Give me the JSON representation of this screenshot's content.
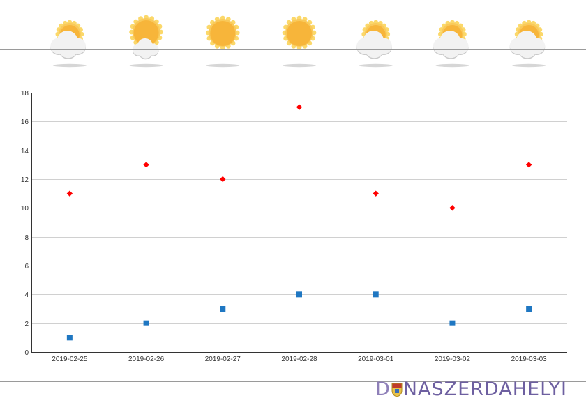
{
  "colors": {
    "series_high": "#ff0000",
    "series_low": "#1f77c2",
    "grid": "#d0d0d0",
    "axis": "#333333",
    "sun_core": "#f7b53a",
    "sun_rays": "#fbd86a",
    "cloud": "#f2f2f2",
    "cloud_shadow": "#c8c8c8"
  },
  "weather_icons": [
    {
      "date": "2019-02-25",
      "icon": "partly-cloudy-icon"
    },
    {
      "date": "2019-02-26",
      "icon": "sun-small-cloud-icon"
    },
    {
      "date": "2019-02-27",
      "icon": "sun-icon"
    },
    {
      "date": "2019-02-28",
      "icon": "sun-icon"
    },
    {
      "date": "2019-03-01",
      "icon": "partly-cloudy-icon"
    },
    {
      "date": "2019-03-02",
      "icon": "partly-cloudy-icon"
    },
    {
      "date": "2019-03-03",
      "icon": "partly-cloudy-icon"
    }
  ],
  "chart_data": {
    "type": "scatter",
    "categories": [
      "2019-02-25",
      "2019-02-26",
      "2019-02-27",
      "2019-02-28",
      "2019-03-01",
      "2019-03-02",
      "2019-03-03"
    ],
    "series": [
      {
        "marker": "diamond",
        "color": "#ff0000",
        "values": [
          11,
          13,
          12,
          17,
          11,
          10,
          13
        ]
      },
      {
        "marker": "square",
        "color": "#1f77c2",
        "values": [
          1,
          2,
          3,
          4,
          4,
          2,
          3
        ]
      }
    ],
    "ylim": [
      0,
      18
    ],
    "yticks": [
      0,
      2,
      4,
      6,
      8,
      10,
      12,
      14,
      16,
      18
    ],
    "grid": true,
    "legend": "none",
    "title": "",
    "xlabel": "",
    "ylabel": ""
  },
  "brand": {
    "part_a": "D",
    "part_b": "NASZERDAHELYI"
  }
}
